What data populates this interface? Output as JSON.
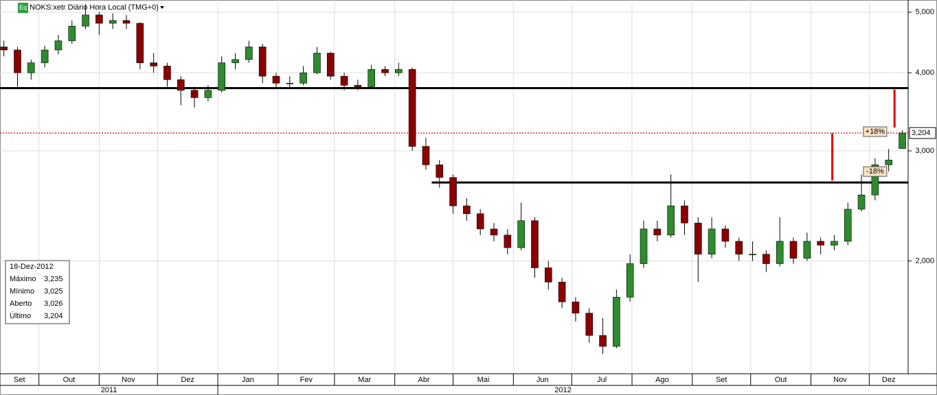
{
  "chart_data": {
    "type": "candlestick",
    "title": "NOKS:xetr Diário Hora Local (TMG+0)",
    "badge": "Eq",
    "log_scale": true,
    "grid": true,
    "up_color": "#2e8b2e",
    "down_color": "#8b0000",
    "xlim": [
      10,
      477
    ],
    "ylim": [
      1.32,
      5.23
    ],
    "yticks": [
      {
        "value": 2,
        "label": "2,000"
      },
      {
        "value": 3,
        "label": "3,000"
      },
      {
        "value": 4,
        "label": "4,000"
      },
      {
        "value": 5,
        "label": "5,000"
      }
    ],
    "xticks": [
      {
        "value": 0,
        "label": "Set"
      },
      {
        "value": 30,
        "label": "Out"
      },
      {
        "value": 61,
        "label": "Nov"
      },
      {
        "value": 91,
        "label": "Dez"
      },
      {
        "value": 122,
        "label": "Jan"
      },
      {
        "value": 153,
        "label": "Fev"
      },
      {
        "value": 182,
        "label": "Mar"
      },
      {
        "value": 213,
        "label": "Abr"
      },
      {
        "value": 243,
        "label": "Mai"
      },
      {
        "value": 274,
        "label": "Jun"
      },
      {
        "value": 304,
        "label": "Jul"
      },
      {
        "value": 335,
        "label": "Ago"
      },
      {
        "value": 366,
        "label": "Set"
      },
      {
        "value": 396,
        "label": "Out"
      },
      {
        "value": 427,
        "label": "Nov"
      },
      {
        "value": 457,
        "label": "Dez"
      }
    ],
    "years": [
      {
        "value": 0,
        "label": "2011"
      },
      {
        "value": 122,
        "label": "2012"
      }
    ],
    "x": [
      12,
      19,
      26,
      33,
      40,
      47,
      54,
      61,
      68,
      75,
      82,
      89,
      96,
      103,
      110,
      117,
      124,
      131,
      138,
      145,
      152,
      159,
      166,
      173,
      180,
      187,
      194,
      201,
      208,
      215,
      222,
      229,
      236,
      243,
      250,
      257,
      264,
      271,
      278,
      285,
      292,
      299,
      306,
      313,
      320,
      327,
      334,
      341,
      348,
      355,
      362,
      369,
      376,
      383,
      390,
      397,
      404,
      411,
      418,
      425,
      432,
      439,
      446,
      453,
      460,
      467,
      474
    ],
    "open": [
      4.4,
      4.35,
      4.0,
      4.15,
      4.35,
      4.5,
      4.75,
      4.95,
      4.8,
      4.85,
      4.8,
      4.15,
      4.1,
      3.9,
      3.75,
      3.65,
      3.75,
      4.15,
      4.2,
      4.4,
      3.95,
      3.85,
      3.85,
      4.0,
      4.3,
      3.95,
      3.82,
      3.8,
      4.05,
      4.0,
      4.05,
      3.05,
      2.85,
      2.72,
      2.45,
      2.38,
      2.25,
      2.2,
      2.1,
      2.32,
      1.95,
      1.85,
      1.72,
      1.65,
      1.52,
      1.46,
      1.75,
      1.98,
      2.25,
      2.2,
      2.45,
      2.3,
      2.05,
      2.25,
      2.15,
      2.05,
      2.05,
      1.98,
      2.15,
      2.02,
      2.15,
      2.12,
      2.15,
      2.42,
      2.55,
      2.85,
      3.026
    ],
    "high": [
      4.5,
      4.4,
      4.2,
      4.42,
      4.6,
      4.85,
      5.15,
      5.0,
      4.98,
      4.95,
      4.82,
      4.3,
      4.15,
      3.95,
      3.8,
      3.82,
      4.25,
      4.3,
      4.5,
      4.45,
      4.0,
      3.95,
      4.1,
      4.4,
      4.32,
      4.0,
      3.9,
      4.12,
      4.1,
      4.15,
      4.08,
      3.15,
      2.9,
      2.75,
      2.52,
      2.42,
      2.3,
      2.25,
      2.48,
      2.35,
      2.0,
      1.88,
      1.75,
      1.68,
      1.62,
      1.8,
      2.05,
      2.32,
      2.32,
      2.75,
      2.5,
      2.35,
      2.35,
      2.28,
      2.18,
      2.15,
      2.08,
      2.35,
      2.18,
      2.22,
      2.18,
      2.2,
      2.48,
      2.75,
      2.92,
      3.02,
      3.235
    ],
    "low": [
      4.25,
      3.8,
      3.9,
      4.08,
      4.28,
      4.45,
      4.7,
      4.6,
      4.7,
      4.7,
      4.05,
      4.0,
      3.8,
      3.55,
      3.52,
      3.6,
      3.72,
      4.05,
      4.15,
      3.85,
      3.78,
      3.78,
      3.82,
      3.98,
      3.9,
      3.75,
      3.75,
      3.78,
      3.95,
      3.95,
      3.0,
      2.8,
      2.62,
      2.38,
      2.32,
      2.2,
      2.15,
      2.05,
      2.08,
      1.88,
      1.8,
      1.68,
      1.6,
      1.48,
      1.42,
      1.45,
      1.72,
      1.95,
      2.15,
      2.18,
      2.2,
      1.85,
      2.02,
      2.1,
      2.0,
      2.0,
      1.92,
      1.96,
      1.98,
      2.0,
      2.05,
      2.08,
      2.12,
      2.4,
      2.5,
      2.78,
      3.025
    ],
    "close": [
      4.35,
      4.0,
      4.15,
      4.35,
      4.5,
      4.75,
      4.95,
      4.8,
      4.85,
      4.8,
      4.15,
      4.1,
      3.9,
      3.75,
      3.65,
      3.75,
      4.15,
      4.2,
      4.4,
      3.95,
      3.85,
      3.85,
      4.0,
      4.3,
      3.95,
      3.82,
      3.8,
      4.05,
      4.0,
      4.05,
      3.05,
      2.85,
      2.72,
      2.45,
      2.38,
      2.25,
      2.2,
      2.1,
      2.32,
      1.95,
      1.85,
      1.72,
      1.65,
      1.52,
      1.46,
      1.75,
      1.98,
      2.25,
      2.2,
      2.45,
      2.3,
      2.05,
      2.25,
      2.15,
      2.05,
      2.05,
      1.98,
      2.15,
      2.02,
      2.15,
      2.12,
      2.15,
      2.42,
      2.55,
      2.85,
      2.9,
      3.204
    ],
    "hlines": [
      {
        "value": 3.78,
        "from": 10
      },
      {
        "value": 2.67,
        "from": 232
      }
    ],
    "price_line": {
      "value": 3.204,
      "label": "3,204",
      "color": "#cc0000"
    },
    "segments": [
      {
        "x": 438,
        "from": 3.2,
        "to": 2.69
      },
      {
        "x": 470,
        "from": 3.76,
        "to": 3.27
      }
    ],
    "annotations": [
      {
        "x": 460,
        "value": 3.22,
        "label": "+18%"
      },
      {
        "x": 460,
        "value": 2.78,
        "label": "-18%"
      }
    ],
    "info_box": {
      "date": "18-Dez-2012",
      "rows": [
        [
          "Máximo",
          "3,235"
        ],
        [
          "Mínimo",
          "3,025"
        ],
        [
          "Aberto",
          "3,026"
        ],
        [
          "Último",
          "3,204"
        ]
      ]
    }
  }
}
